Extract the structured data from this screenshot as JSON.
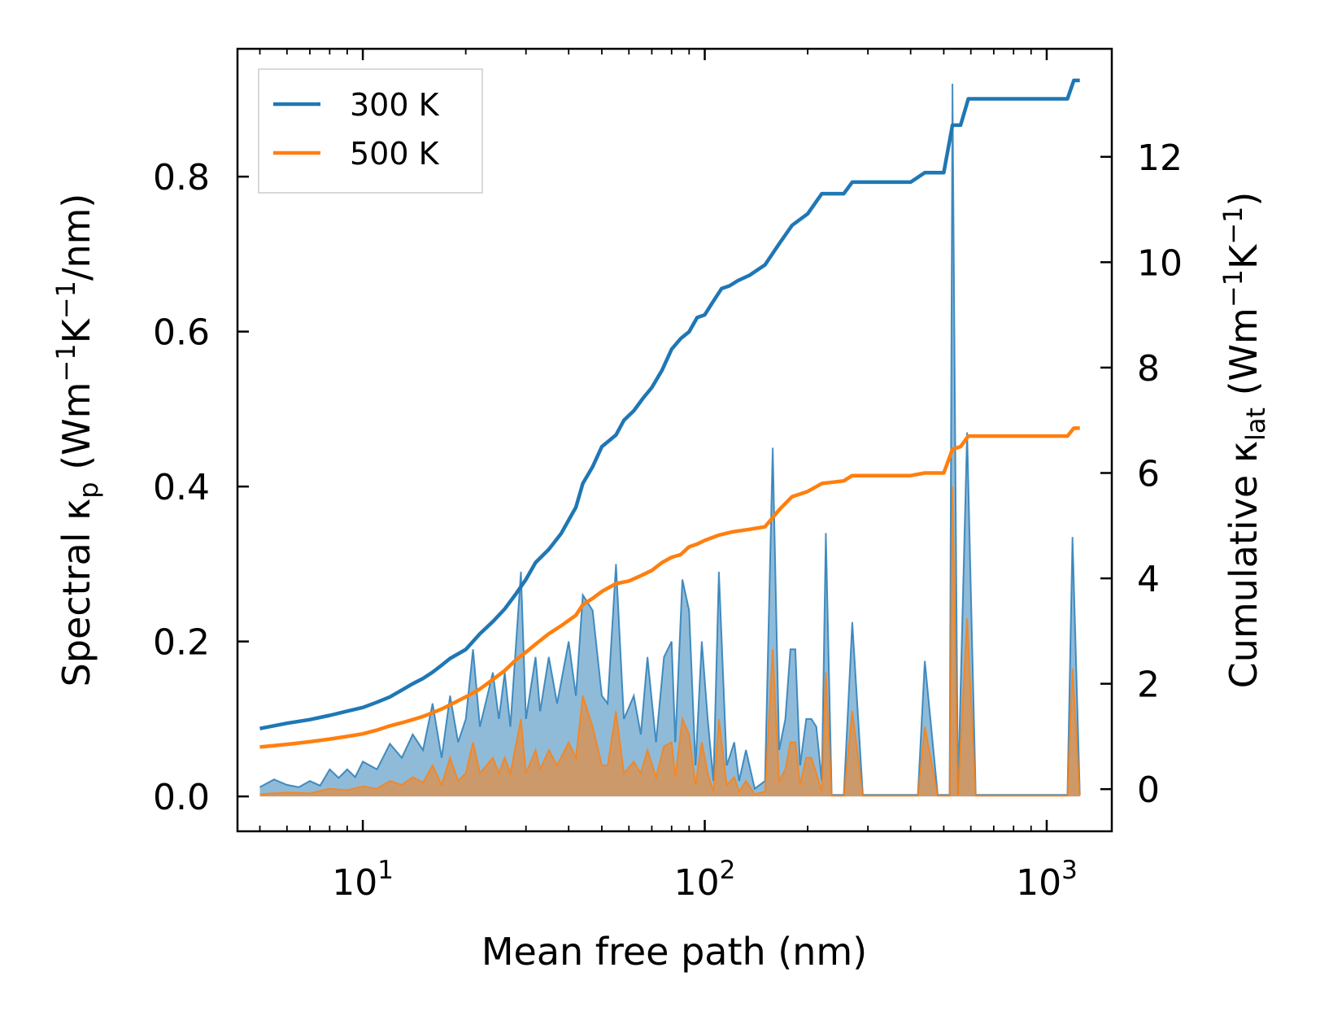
{
  "chart_data": {
    "type": "line",
    "xlabel": "Mean free path (nm)",
    "ylabel_left": {
      "main": "Spectral κ",
      "sub": "p",
      "unit_open": " (Wm",
      "sup1": "−1",
      "k": "K",
      "sup2": "−1",
      "unit_close": "/nm)"
    },
    "ylabel_right": {
      "main": "Cumulative κ",
      "sub": "lat",
      "unit_open": " (Wm",
      "sup1": "−1",
      "k": "K",
      "sup2": "−1",
      "unit_close": ")"
    },
    "x_scale": "log",
    "xlim": [
      4.3,
      1550
    ],
    "ylim_left": [
      -0.045,
      0.965
    ],
    "ylim_right": [
      -0.8,
      14.05
    ],
    "x_ticks": [
      {
        "value": 10,
        "base": "10",
        "exp": "1"
      },
      {
        "value": 100,
        "base": "10",
        "exp": "2"
      },
      {
        "value": 1000,
        "base": "10",
        "exp": "3"
      }
    ],
    "y_ticks_left": [
      {
        "value": 0.0,
        "label": "0.0"
      },
      {
        "value": 0.2,
        "label": "0.2"
      },
      {
        "value": 0.4,
        "label": "0.4"
      },
      {
        "value": 0.6,
        "label": "0.6"
      },
      {
        "value": 0.8,
        "label": "0.8"
      }
    ],
    "y_ticks_right": [
      {
        "value": 0,
        "label": "0"
      },
      {
        "value": 2,
        "label": "2"
      },
      {
        "value": 4,
        "label": "4"
      },
      {
        "value": 6,
        "label": "6"
      },
      {
        "value": 8,
        "label": "8"
      },
      {
        "value": 10,
        "label": "10"
      },
      {
        "value": 12,
        "label": "12"
      }
    ],
    "legend_position": "top-left",
    "series": [
      {
        "name": "300 K",
        "color": "#1f77b4",
        "spectral": [
          [
            5,
            0.012
          ],
          [
            5.5,
            0.022
          ],
          [
            6,
            0.015
          ],
          [
            6.5,
            0.012
          ],
          [
            7,
            0.02
          ],
          [
            7.5,
            0.014
          ],
          [
            8,
            0.035
          ],
          [
            8.5,
            0.024
          ],
          [
            9,
            0.035
          ],
          [
            9.5,
            0.025
          ],
          [
            10,
            0.045
          ],
          [
            11,
            0.035
          ],
          [
            12,
            0.068
          ],
          [
            13,
            0.05
          ],
          [
            14,
            0.08
          ],
          [
            15,
            0.06
          ],
          [
            16,
            0.12
          ],
          [
            17,
            0.05
          ],
          [
            18,
            0.13
          ],
          [
            19,
            0.07
          ],
          [
            20,
            0.1
          ],
          [
            21,
            0.19
          ],
          [
            22,
            0.09
          ],
          [
            24,
            0.16
          ],
          [
            25,
            0.1
          ],
          [
            26,
            0.16
          ],
          [
            27,
            0.09
          ],
          [
            29,
            0.29
          ],
          [
            30,
            0.1
          ],
          [
            32,
            0.18
          ],
          [
            33,
            0.11
          ],
          [
            35,
            0.18
          ],
          [
            37,
            0.12
          ],
          [
            40,
            0.2
          ],
          [
            42,
            0.13
          ],
          [
            44,
            0.26
          ],
          [
            47,
            0.24
          ],
          [
            50,
            0.13
          ],
          [
            52,
            0.12
          ],
          [
            55,
            0.3
          ],
          [
            58,
            0.1
          ],
          [
            62,
            0.13
          ],
          [
            65,
            0.08
          ],
          [
            68,
            0.18
          ],
          [
            72,
            0.07
          ],
          [
            76,
            0.18
          ],
          [
            80,
            0.2
          ],
          [
            82,
            0.07
          ],
          [
            86,
            0.28
          ],
          [
            90,
            0.24
          ],
          [
            94,
            0.04
          ],
          [
            98,
            0.2
          ],
          [
            102,
            0.1
          ],
          [
            106,
            0.02
          ],
          [
            110,
            0.29
          ],
          [
            116,
            0.04
          ],
          [
            122,
            0.07
          ],
          [
            126,
            0.02
          ],
          [
            132,
            0.06
          ],
          [
            140,
            0.01
          ],
          [
            150,
            0.02
          ],
          [
            158,
            0.45
          ],
          [
            165,
            0.06
          ],
          [
            172,
            0.1
          ],
          [
            178,
            0.19
          ],
          [
            184,
            0.19
          ],
          [
            190,
            0.04
          ],
          [
            198,
            0.1
          ],
          [
            205,
            0.1
          ],
          [
            212,
            0.09
          ],
          [
            220,
            0.02
          ],
          [
            226,
            0.34
          ],
          [
            235,
            0.002
          ],
          [
            255,
            0.002
          ],
          [
            270,
            0.225
          ],
          [
            290,
            0.002
          ],
          [
            320,
            0.002
          ],
          [
            420,
            0.002
          ],
          [
            440,
            0.175
          ],
          [
            480,
            0.002
          ],
          [
            520,
            0.002
          ],
          [
            530,
            0.92
          ],
          [
            550,
            0.002
          ],
          [
            585,
            0.47
          ],
          [
            620,
            0.002
          ],
          [
            800,
            0.002
          ],
          [
            1150,
            0.002
          ],
          [
            1190,
            0.335
          ],
          [
            1250,
            0.002
          ]
        ],
        "cumulative": [
          [
            5,
            1.15
          ],
          [
            6,
            1.25
          ],
          [
            7,
            1.32
          ],
          [
            8,
            1.4
          ],
          [
            9,
            1.48
          ],
          [
            10,
            1.55
          ],
          [
            11,
            1.65
          ],
          [
            12,
            1.75
          ],
          [
            13,
            1.88
          ],
          [
            14,
            2.0
          ],
          [
            15,
            2.1
          ],
          [
            16,
            2.22
          ],
          [
            17,
            2.35
          ],
          [
            18,
            2.48
          ],
          [
            20,
            2.65
          ],
          [
            22,
            2.95
          ],
          [
            24,
            3.18
          ],
          [
            26,
            3.42
          ],
          [
            28,
            3.7
          ],
          [
            30,
            3.98
          ],
          [
            32,
            4.3
          ],
          [
            35,
            4.55
          ],
          [
            38,
            4.85
          ],
          [
            42,
            5.35
          ],
          [
            44,
            5.8
          ],
          [
            47,
            6.12
          ],
          [
            50,
            6.5
          ],
          [
            55,
            6.72
          ],
          [
            58,
            7.0
          ],
          [
            62,
            7.18
          ],
          [
            66,
            7.42
          ],
          [
            70,
            7.62
          ],
          [
            75,
            7.95
          ],
          [
            80,
            8.35
          ],
          [
            85,
            8.55
          ],
          [
            90,
            8.68
          ],
          [
            95,
            8.95
          ],
          [
            100,
            9.0
          ],
          [
            105,
            9.22
          ],
          [
            112,
            9.5
          ],
          [
            118,
            9.55
          ],
          [
            125,
            9.65
          ],
          [
            135,
            9.75
          ],
          [
            150,
            9.95
          ],
          [
            165,
            10.35
          ],
          [
            180,
            10.7
          ],
          [
            200,
            10.92
          ],
          [
            220,
            11.3
          ],
          [
            255,
            11.3
          ],
          [
            270,
            11.52
          ],
          [
            400,
            11.52
          ],
          [
            440,
            11.7
          ],
          [
            500,
            11.7
          ],
          [
            530,
            12.6
          ],
          [
            560,
            12.6
          ],
          [
            590,
            13.1
          ],
          [
            800,
            13.1
          ],
          [
            1150,
            13.1
          ],
          [
            1200,
            13.45
          ],
          [
            1250,
            13.45
          ]
        ]
      },
      {
        "name": "500 K",
        "color": "#ff7f0e",
        "spectral": [
          [
            5,
            0.003
          ],
          [
            6,
            0.005
          ],
          [
            7,
            0.004
          ],
          [
            8,
            0.01
          ],
          [
            9,
            0.008
          ],
          [
            10,
            0.013
          ],
          [
            11,
            0.01
          ],
          [
            12,
            0.02
          ],
          [
            13,
            0.015
          ],
          [
            14,
            0.025
          ],
          [
            15,
            0.018
          ],
          [
            16,
            0.04
          ],
          [
            17,
            0.015
          ],
          [
            18,
            0.05
          ],
          [
            19,
            0.02
          ],
          [
            20,
            0.03
          ],
          [
            21,
            0.07
          ],
          [
            22,
            0.03
          ],
          [
            24,
            0.05
          ],
          [
            25,
            0.03
          ],
          [
            26,
            0.05
          ],
          [
            27,
            0.03
          ],
          [
            29,
            0.1
          ],
          [
            30,
            0.03
          ],
          [
            32,
            0.06
          ],
          [
            33,
            0.035
          ],
          [
            35,
            0.06
          ],
          [
            37,
            0.04
          ],
          [
            40,
            0.07
          ],
          [
            42,
            0.05
          ],
          [
            44,
            0.13
          ],
          [
            47,
            0.09
          ],
          [
            50,
            0.04
          ],
          [
            52,
            0.04
          ],
          [
            55,
            0.11
          ],
          [
            58,
            0.03
          ],
          [
            62,
            0.045
          ],
          [
            65,
            0.03
          ],
          [
            68,
            0.06
          ],
          [
            72,
            0.025
          ],
          [
            76,
            0.065
          ],
          [
            80,
            0.07
          ],
          [
            82,
            0.025
          ],
          [
            86,
            0.1
          ],
          [
            90,
            0.08
          ],
          [
            94,
            0.015
          ],
          [
            98,
            0.07
          ],
          [
            102,
            0.03
          ],
          [
            106,
            0.006
          ],
          [
            110,
            0.1
          ],
          [
            116,
            0.015
          ],
          [
            122,
            0.025
          ],
          [
            126,
            0.006
          ],
          [
            132,
            0.02
          ],
          [
            140,
            0.003
          ],
          [
            150,
            0.006
          ],
          [
            158,
            0.19
          ],
          [
            165,
            0.02
          ],
          [
            172,
            0.035
          ],
          [
            178,
            0.07
          ],
          [
            184,
            0.07
          ],
          [
            190,
            0.015
          ],
          [
            198,
            0.05
          ],
          [
            205,
            0.05
          ],
          [
            212,
            0.03
          ],
          [
            220,
            0.006
          ],
          [
            226,
            0.16
          ],
          [
            235,
            0.001
          ],
          [
            255,
            0.001
          ],
          [
            270,
            0.11
          ],
          [
            290,
            0.001
          ],
          [
            320,
            0.001
          ],
          [
            420,
            0.001
          ],
          [
            440,
            0.09
          ],
          [
            480,
            0.001
          ],
          [
            520,
            0.001
          ],
          [
            530,
            0.4
          ],
          [
            550,
            0.001
          ],
          [
            585,
            0.23
          ],
          [
            620,
            0.001
          ],
          [
            800,
            0.001
          ],
          [
            1150,
            0.001
          ],
          [
            1190,
            0.165
          ],
          [
            1250,
            0.001
          ]
        ],
        "cumulative": [
          [
            5,
            0.8
          ],
          [
            6,
            0.85
          ],
          [
            7,
            0.9
          ],
          [
            8,
            0.95
          ],
          [
            9,
            1.0
          ],
          [
            10,
            1.05
          ],
          [
            11,
            1.12
          ],
          [
            12,
            1.2
          ],
          [
            13,
            1.26
          ],
          [
            14,
            1.32
          ],
          [
            15,
            1.38
          ],
          [
            16,
            1.45
          ],
          [
            17,
            1.52
          ],
          [
            18,
            1.6
          ],
          [
            20,
            1.75
          ],
          [
            22,
            1.9
          ],
          [
            24,
            2.08
          ],
          [
            26,
            2.25
          ],
          [
            28,
            2.45
          ],
          [
            30,
            2.6
          ],
          [
            32,
            2.75
          ],
          [
            35,
            2.95
          ],
          [
            38,
            3.1
          ],
          [
            42,
            3.3
          ],
          [
            44,
            3.5
          ],
          [
            47,
            3.62
          ],
          [
            50,
            3.75
          ],
          [
            55,
            3.9
          ],
          [
            60,
            3.95
          ],
          [
            65,
            4.05
          ],
          [
            70,
            4.15
          ],
          [
            75,
            4.3
          ],
          [
            80,
            4.4
          ],
          [
            85,
            4.45
          ],
          [
            90,
            4.6
          ],
          [
            95,
            4.65
          ],
          [
            100,
            4.72
          ],
          [
            110,
            4.82
          ],
          [
            120,
            4.88
          ],
          [
            135,
            4.93
          ],
          [
            150,
            4.98
          ],
          [
            165,
            5.3
          ],
          [
            180,
            5.55
          ],
          [
            200,
            5.65
          ],
          [
            220,
            5.8
          ],
          [
            255,
            5.85
          ],
          [
            270,
            5.95
          ],
          [
            400,
            5.95
          ],
          [
            440,
            6.0
          ],
          [
            500,
            6.0
          ],
          [
            530,
            6.45
          ],
          [
            560,
            6.5
          ],
          [
            590,
            6.7
          ],
          [
            800,
            6.7
          ],
          [
            1150,
            6.7
          ],
          [
            1200,
            6.85
          ],
          [
            1250,
            6.85
          ]
        ]
      }
    ]
  }
}
